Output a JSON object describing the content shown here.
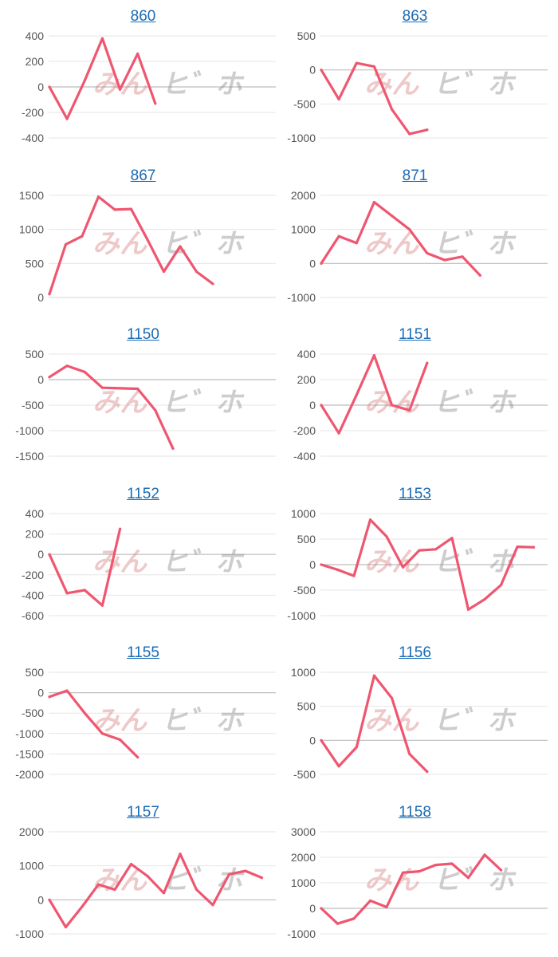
{
  "colors": {
    "line": "#ef5670",
    "grid": "#e6e6e6",
    "zero": "#bdbdbd",
    "title": "#1a6bb5",
    "tick": "#555555"
  },
  "chart_data": [
    {
      "type": "line",
      "title": "860",
      "yticks": [
        400,
        200,
        0,
        -200,
        -400
      ],
      "ylim": [
        -400,
        400
      ],
      "series": [
        {
          "values": [
            0,
            -250,
            50,
            380,
            -20,
            260,
            -130
          ]
        }
      ]
    },
    {
      "type": "line",
      "title": "863",
      "yticks": [
        500,
        0,
        -500,
        -1000
      ],
      "ylim": [
        -1000,
        500
      ],
      "series": [
        {
          "values": [
            0,
            -430,
            100,
            50,
            -580,
            -940,
            -880
          ]
        }
      ]
    },
    {
      "type": "line",
      "title": "867",
      "yticks": [
        1500,
        1000,
        500,
        0
      ],
      "ylim": [
        0,
        1500
      ],
      "series": [
        {
          "values": [
            50,
            780,
            900,
            1480,
            1290,
            1300,
            850,
            380,
            750,
            380,
            200
          ]
        }
      ]
    },
    {
      "type": "line",
      "title": "871",
      "yticks": [
        2000,
        1000,
        0,
        -1000
      ],
      "ylim": [
        -1000,
        2000
      ],
      "series": [
        {
          "values": [
            0,
            800,
            600,
            1800,
            1400,
            1000,
            300,
            100,
            200,
            -350
          ]
        }
      ]
    },
    {
      "type": "line",
      "title": "1150",
      "yticks": [
        500,
        0,
        -500,
        -1000,
        -1500
      ],
      "ylim": [
        -1500,
        500
      ],
      "series": [
        {
          "values": [
            50,
            270,
            150,
            -160,
            -170,
            -180,
            -600,
            -1350
          ]
        }
      ]
    },
    {
      "type": "line",
      "title": "1151",
      "yticks": [
        400,
        200,
        0,
        -200,
        -400
      ],
      "ylim": [
        -400,
        400
      ],
      "series": [
        {
          "values": [
            0,
            -220,
            80,
            390,
            0,
            -40,
            330
          ]
        }
      ]
    },
    {
      "type": "line",
      "title": "1152",
      "yticks": [
        400,
        200,
        0,
        -200,
        -400,
        -600
      ],
      "ylim": [
        -600,
        400
      ],
      "series": [
        {
          "values": [
            0,
            -380,
            -350,
            -500,
            250
          ]
        }
      ]
    },
    {
      "type": "line",
      "title": "1153",
      "yticks": [
        1000,
        500,
        0,
        -500,
        -1000
      ],
      "ylim": [
        -1000,
        1000
      ],
      "series": [
        {
          "values": [
            0,
            -100,
            -220,
            880,
            550,
            -50,
            280,
            300,
            520,
            -880,
            -680,
            -400,
            350,
            340
          ]
        }
      ]
    },
    {
      "type": "line",
      "title": "1155",
      "yticks": [
        500,
        0,
        -500,
        -1000,
        -1500,
        -2000
      ],
      "ylim": [
        -2000,
        500
      ],
      "series": [
        {
          "values": [
            -100,
            50,
            -500,
            -1000,
            -1150,
            -1580
          ]
        }
      ]
    },
    {
      "type": "line",
      "title": "1156",
      "yticks": [
        1000,
        500,
        0,
        -500
      ],
      "ylim": [
        -500,
        1000
      ],
      "series": [
        {
          "values": [
            0,
            -380,
            -100,
            950,
            620,
            -200,
            -460
          ]
        }
      ]
    },
    {
      "type": "line",
      "title": "1157",
      "yticks": [
        2000,
        1000,
        0,
        -1000
      ],
      "ylim": [
        -1000,
        2000
      ],
      "series": [
        {
          "values": [
            0,
            -800,
            -200,
            450,
            300,
            1050,
            700,
            200,
            1350,
            300,
            -150,
            750,
            850,
            650
          ]
        }
      ]
    },
    {
      "type": "line",
      "title": "1158",
      "yticks": [
        3000,
        2000,
        1000,
        0,
        -1000
      ],
      "ylim": [
        -1000,
        3000
      ],
      "series": [
        {
          "values": [
            0,
            -600,
            -400,
            300,
            50,
            1400,
            1450,
            1700,
            1750,
            1200,
            2100,
            1500
          ]
        }
      ]
    }
  ]
}
